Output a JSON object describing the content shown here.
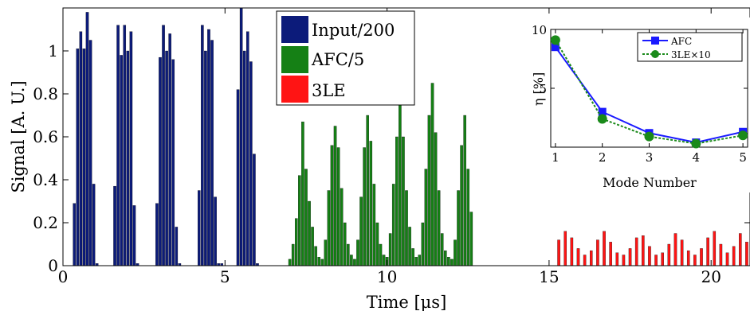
{
  "chart_data": [
    {
      "type": "bar",
      "xlabel": "Time [μs]",
      "ylabel": "Signal [A. U.]",
      "xlim": [
        0,
        21.2
      ],
      "ylim": [
        0,
        1.2
      ],
      "xticks": [
        0,
        5,
        10,
        15,
        20
      ],
      "yticks": [
        0,
        0.2,
        0.4,
        0.6,
        0.8,
        1
      ],
      "grid": false,
      "legend_position": "top-center",
      "legend": [
        "Input/200",
        "AFC/5",
        "3LE"
      ],
      "colors": {
        "Input/200": "#0c1b7a",
        "AFC/5": "#158015",
        "3LE": "#ff1414"
      },
      "series": [
        {
          "name": "Input/200",
          "x": [
            0.35,
            0.45,
            0.55,
            0.65,
            0.75,
            0.85,
            0.95,
            1.05,
            1.6,
            1.7,
            1.8,
            1.9,
            2.0,
            2.1,
            2.2,
            2.3,
            2.9,
            3.0,
            3.1,
            3.2,
            3.3,
            3.4,
            3.5,
            3.6,
            4.2,
            4.3,
            4.4,
            4.5,
            4.6,
            4.7,
            4.8,
            4.9,
            5.4,
            5.5,
            5.6,
            5.7,
            5.8,
            5.9,
            6.0
          ],
          "values": [
            0.29,
            1.01,
            1.09,
            1.01,
            1.18,
            1.05,
            0.38,
            0.01,
            0.37,
            1.12,
            0.98,
            1.12,
            1.0,
            1.09,
            0.28,
            0.01,
            0.29,
            0.97,
            1.12,
            1.0,
            1.08,
            0.96,
            0.18,
            0.01,
            0.35,
            1.12,
            1.0,
            1.1,
            1.05,
            0.32,
            0.01,
            0.01,
            0.82,
            1.2,
            1.0,
            1.09,
            0.95,
            0.52,
            0.01
          ]
        },
        {
          "name": "AFC/5",
          "x": [
            7.0,
            7.1,
            7.2,
            7.3,
            7.4,
            7.5,
            7.6,
            7.7,
            7.8,
            7.9,
            8.0,
            8.1,
            8.2,
            8.3,
            8.4,
            8.5,
            8.6,
            8.7,
            8.8,
            8.9,
            9.0,
            9.1,
            9.2,
            9.3,
            9.4,
            9.5,
            9.6,
            9.7,
            9.8,
            9.9,
            10.0,
            10.1,
            10.2,
            10.3,
            10.4,
            10.5,
            10.6,
            10.7,
            10.8,
            10.9,
            11.0,
            11.1,
            11.2,
            11.3,
            11.4,
            11.5,
            11.6,
            11.7,
            11.8,
            11.9,
            12.0,
            12.1,
            12.2,
            12.3,
            12.4,
            12.5,
            12.6
          ],
          "values": [
            0.03,
            0.1,
            0.22,
            0.42,
            0.67,
            0.45,
            0.3,
            0.18,
            0.09,
            0.04,
            0.03,
            0.12,
            0.35,
            0.56,
            0.65,
            0.55,
            0.36,
            0.2,
            0.1,
            0.05,
            0.03,
            0.12,
            0.32,
            0.55,
            0.7,
            0.58,
            0.38,
            0.2,
            0.1,
            0.05,
            0.04,
            0.15,
            0.38,
            0.6,
            0.78,
            0.6,
            0.35,
            0.18,
            0.08,
            0.04,
            0.05,
            0.2,
            0.45,
            0.7,
            0.85,
            0.62,
            0.35,
            0.15,
            0.07,
            0.04,
            0.03,
            0.12,
            0.35,
            0.56,
            0.7,
            0.45,
            0.25
          ]
        },
        {
          "name": "3LE",
          "x": [
            15.3,
            15.5,
            15.7,
            15.9,
            16.1,
            16.3,
            16.5,
            16.7,
            16.9,
            17.1,
            17.3,
            17.5,
            17.7,
            17.9,
            18.1,
            18.3,
            18.5,
            18.7,
            18.9,
            19.1,
            19.3,
            19.5,
            19.7,
            19.9,
            20.1,
            20.3,
            20.5,
            20.7,
            20.9,
            21.1
          ],
          "values": [
            0.12,
            0.16,
            0.13,
            0.08,
            0.05,
            0.07,
            0.12,
            0.16,
            0.11,
            0.06,
            0.05,
            0.08,
            0.13,
            0.14,
            0.09,
            0.05,
            0.06,
            0.1,
            0.15,
            0.12,
            0.07,
            0.05,
            0.08,
            0.13,
            0.16,
            0.1,
            0.06,
            0.09,
            0.15,
            0.11
          ]
        }
      ]
    },
    {
      "type": "line",
      "xlabel": "Mode Number",
      "ylabel": "η [%]",
      "xlim": [
        0.9,
        5.1
      ],
      "ylim": [
        0,
        10
      ],
      "xticks": [
        1,
        2,
        3,
        4,
        5
      ],
      "yticks": [
        5,
        10
      ],
      "legend_position": "top-right",
      "legend": [
        "AFC",
        "3LE×10"
      ],
      "colors": {
        "AFC": "#1a1aff",
        "3LE×10": "#1a8a1a"
      },
      "x": [
        1,
        2,
        3,
        4,
        5
      ],
      "series": [
        {
          "name": "AFC",
          "values": [
            8.5,
            3.0,
            1.2,
            0.4,
            1.3
          ]
        },
        {
          "name": "3LE×10",
          "values": [
            9.1,
            2.4,
            0.9,
            0.3,
            1.0
          ]
        }
      ]
    }
  ]
}
